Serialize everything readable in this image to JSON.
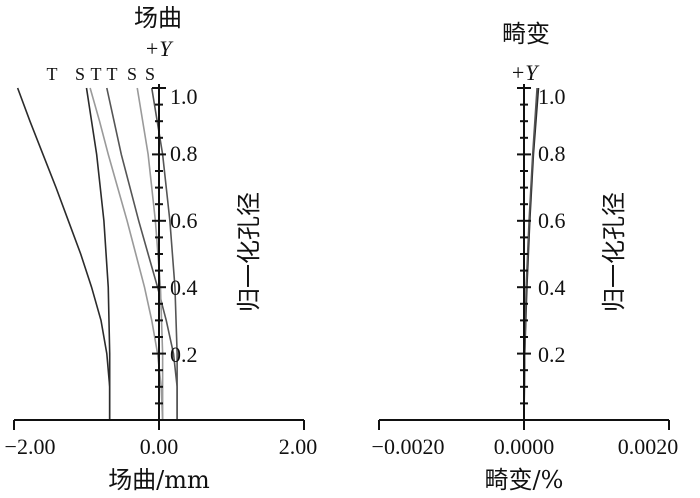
{
  "chart_data": [
    {
      "type": "line",
      "title": "场曲",
      "axis_marker": "+Y",
      "xlabel": "场曲/mm",
      "ylabel": "归一化孔径",
      "xlim": [
        -2.0,
        2.0
      ],
      "ylim": [
        0,
        1.0
      ],
      "x_tick_labels": [
        "−2.00",
        "0.00",
        "2.00"
      ],
      "y_tick_labels": [
        "0.2",
        "0.4",
        "0.6",
        "0.8",
        "1.0"
      ],
      "curve_labels": [
        "T",
        "S",
        "T",
        "T",
        "S",
        "S"
      ],
      "series": [
        {
          "label": "T",
          "color": "#2b2b2b",
          "points": [
            [
              -0.68,
              0
            ],
            [
              -0.68,
              0.1
            ],
            [
              -0.72,
              0.2
            ],
            [
              -0.8,
              0.3
            ],
            [
              -0.93,
              0.4
            ],
            [
              -1.08,
              0.5
            ],
            [
              -1.25,
              0.6
            ],
            [
              -1.42,
              0.7
            ],
            [
              -1.6,
              0.8
            ],
            [
              -1.78,
              0.9
            ],
            [
              -1.95,
              1.0
            ]
          ]
        },
        {
          "label": "S",
          "color": "#2b2b2b",
          "points": [
            [
              -0.68,
              0
            ],
            [
              -0.68,
              0.2
            ],
            [
              -0.7,
              0.4
            ],
            [
              -0.76,
              0.6
            ],
            [
              -0.86,
              0.8
            ],
            [
              -1.0,
              1.0
            ]
          ]
        },
        {
          "label": "T",
          "color": "#9a9a9a",
          "points": [
            [
              0.05,
              0
            ],
            [
              0.03,
              0.1
            ],
            [
              -0.02,
              0.2
            ],
            [
              -0.1,
              0.3
            ],
            [
              -0.2,
              0.4
            ],
            [
              -0.32,
              0.5
            ],
            [
              -0.44,
              0.6
            ],
            [
              -0.57,
              0.7
            ],
            [
              -0.7,
              0.8
            ],
            [
              -0.82,
              0.9
            ],
            [
              -0.95,
              1.0
            ]
          ]
        },
        {
          "label": "T",
          "color": "#555555",
          "points": [
            [
              0.25,
              0
            ],
            [
              0.25,
              0.1
            ],
            [
              0.2,
              0.2
            ],
            [
              0.1,
              0.3
            ],
            [
              -0.02,
              0.4
            ],
            [
              -0.15,
              0.5
            ],
            [
              -0.28,
              0.6
            ],
            [
              -0.4,
              0.7
            ],
            [
              -0.52,
              0.8
            ],
            [
              -0.62,
              0.9
            ],
            [
              -0.72,
              1.0
            ]
          ]
        },
        {
          "label": "S",
          "color": "#9a9a9a",
          "points": [
            [
              0.05,
              0
            ],
            [
              0.05,
              0.2
            ],
            [
              0.02,
              0.4
            ],
            [
              -0.05,
              0.6
            ],
            [
              -0.15,
              0.8
            ],
            [
              -0.3,
              1.0
            ]
          ]
        },
        {
          "label": "S",
          "color": "#555555",
          "points": [
            [
              0.25,
              0
            ],
            [
              0.25,
              0.2
            ],
            [
              0.22,
              0.4
            ],
            [
              0.15,
              0.6
            ],
            [
              0.05,
              0.8
            ],
            [
              -0.1,
              1.0
            ]
          ]
        }
      ]
    },
    {
      "type": "line",
      "title": "畸变",
      "axis_marker": "+Y",
      "xlabel": "畸变/%",
      "ylabel": "归一化孔径",
      "xlim": [
        -0.002,
        0.002
      ],
      "ylim": [
        0,
        1.0
      ],
      "x_tick_labels": [
        "−0.0020",
        "0.0000",
        "0.0020"
      ],
      "y_tick_labels": [
        "0.2",
        "0.4",
        "0.6",
        "0.8",
        "1.0"
      ],
      "series": [
        {
          "color": "#2b2b2b",
          "points": [
            [
              0,
              0
            ],
            [
              1e-05,
              0.2
            ],
            [
              4e-05,
              0.4
            ],
            [
              8e-05,
              0.6
            ],
            [
              0.00013,
              0.8
            ],
            [
              0.0002,
              1.0
            ]
          ]
        },
        {
          "color": "#555555",
          "points": [
            [
              0,
              0
            ],
            [
              1e-05,
              0.2
            ],
            [
              3e-05,
              0.4
            ],
            [
              7e-05,
              0.6
            ],
            [
              0.00012,
              0.8
            ],
            [
              0.00018,
              1.0
            ]
          ]
        }
      ]
    }
  ]
}
